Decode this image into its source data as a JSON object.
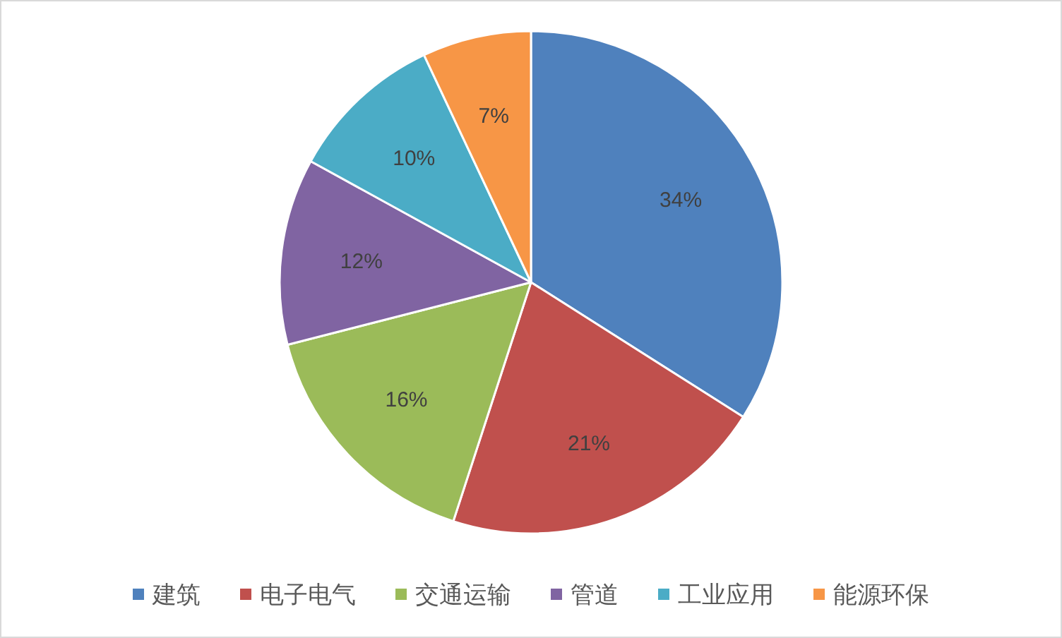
{
  "chart_data": {
    "type": "pie",
    "categories": [
      "建筑",
      "电子电气",
      "交通运输",
      "管道",
      "工业应用",
      "能源环保"
    ],
    "values": [
      34,
      21,
      16,
      12,
      10,
      7
    ],
    "value_labels": [
      "34%",
      "21%",
      "16%",
      "12%",
      "10%",
      "7%"
    ],
    "colors": [
      "#4f81bd",
      "#c0504d",
      "#9bbb59",
      "#8064a2",
      "#4bacc6",
      "#f79646"
    ],
    "legend": "bottom"
  }
}
